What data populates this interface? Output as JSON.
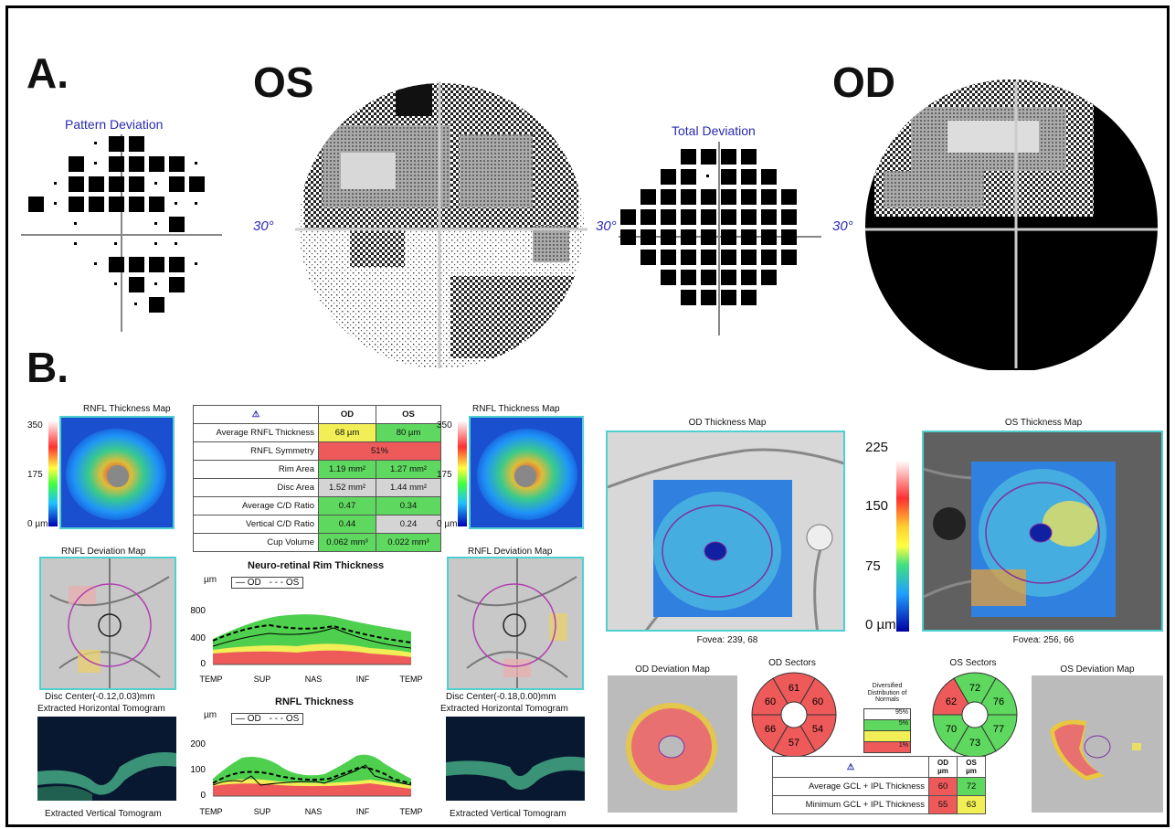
{
  "panel_a": {
    "label": "A.",
    "os_label": "OS",
    "od_label": "OD",
    "pattern_deviation_title": "Pattern Deviation",
    "total_deviation_title": "Total Deviation",
    "deg_os": "30°",
    "deg_total": "30°",
    "deg_od": "30°"
  },
  "panel_b": {
    "label": "B.",
    "rnfl_map_title_od": "RNFL Thickness Map",
    "rnfl_map_title_os": "RNFL Thickness Map",
    "scale_top": "350",
    "scale_mid": "175",
    "scale_bottom": "0 µm",
    "scale_top_os": "350",
    "scale_mid_os": "175",
    "scale_bottom_os": "0 µm",
    "rnfl_dev_title_od": "RNFL Deviation Map",
    "rnfl_dev_title_os": "RNFL Deviation Map",
    "disc_center_od": "Disc Center(-0.12,0.03)mm",
    "disc_center_os": "Disc Center(-0.18,0.00)mm",
    "horiz_tomo_od": "Extracted Horizontal Tomogram",
    "horiz_tomo_os": "Extracted Horizontal Tomogram",
    "vert_tomo_od": "Extracted Vertical Tomogram",
    "vert_tomo_os": "Extracted Vertical Tomogram",
    "table": {
      "headers": [
        "OD",
        "OS"
      ],
      "rows": [
        {
          "label": "Average RNFL Thickness",
          "od": "68 µm",
          "os": "80 µm"
        },
        {
          "label": "RNFL Symmetry",
          "od": "51%",
          "os": ""
        },
        {
          "label": "Rim Area",
          "od": "1.19 mm²",
          "os": "1.27 mm²"
        },
        {
          "label": "Disc Area",
          "od": "1.52 mm²",
          "os": "1.44 mm²"
        },
        {
          "label": "Average C/D Ratio",
          "od": "0.47",
          "os": "0.34"
        },
        {
          "label": "Vertical C/D Ratio",
          "od": "0.44",
          "os": "0.24"
        },
        {
          "label": "Cup Volume",
          "od": "0.062 mm³",
          "os": "0.022 mm³"
        }
      ]
    },
    "rim_chart": {
      "title": "Neuro-retinal Rim Thickness",
      "unit": "µm",
      "legend_od": "OD",
      "legend_os": "OS",
      "yticks": [
        "800",
        "400",
        "0"
      ],
      "xticks": [
        "TEMP",
        "SUP",
        "NAS",
        "INF",
        "TEMP"
      ]
    },
    "rnfl_chart": {
      "title": "RNFL Thickness",
      "unit": "µm",
      "legend_od": "OD",
      "legend_os": "OS",
      "yticks": [
        "200",
        "100",
        "0"
      ],
      "xticks": [
        "TEMP",
        "SUP",
        "NAS",
        "INF",
        "TEMP"
      ]
    },
    "od_thickness_title": "OD Thickness Map",
    "os_thickness_title": "OS Thickness Map",
    "fovea_od": "Fovea: 239, 68",
    "fovea_os": "Fovea: 256, 66",
    "mac_scale": [
      "225",
      "150",
      "75",
      "0 µm"
    ],
    "od_dev_title": "OD Deviation Map",
    "os_dev_title": "OS Deviation Map",
    "od_sectors_title": "OD Sectors",
    "os_sectors_title": "OS Sectors",
    "od_sectors": [
      "61",
      "60",
      "54",
      "57",
      "66",
      "60"
    ],
    "os_sectors": [
      "72",
      "76",
      "77",
      "73",
      "70",
      "62"
    ],
    "legend_title": "Diversified Distribution of Normals",
    "legend_items": [
      "95%",
      "5%",
      "1%"
    ],
    "gcl_table": {
      "headers": [
        "OD µm",
        "OS µm"
      ],
      "rows": [
        {
          "label": "Average GCL + IPL Thickness",
          "od": "60",
          "os": "72"
        },
        {
          "label": "Minimum GCL + IPL Thickness",
          "od": "55",
          "os": "63"
        }
      ]
    }
  },
  "colors": {
    "normal_green": "#5ed85e",
    "borderline_yellow": "#f2ee55",
    "abnormal_red": "#ee5a5a",
    "frame_cyan": "#4fd0d0",
    "title_blue": "#2a2ab0"
  }
}
